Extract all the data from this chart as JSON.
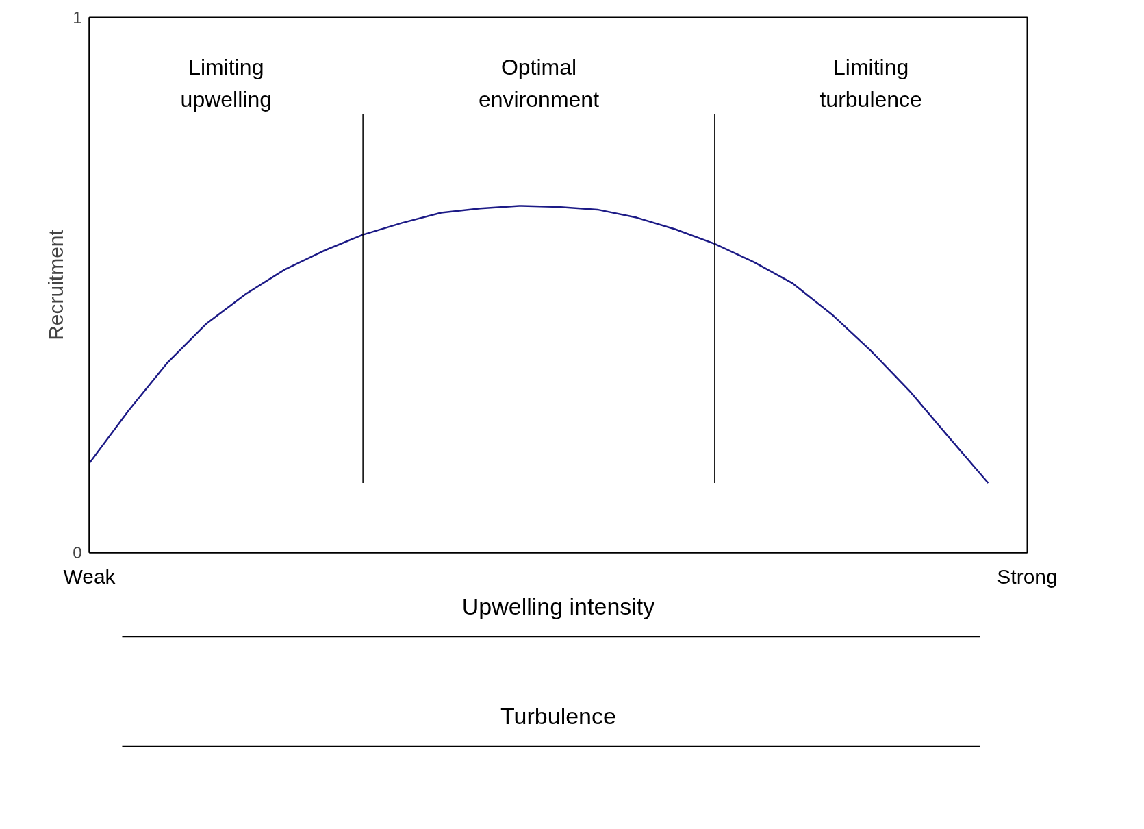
{
  "chart_data": {
    "type": "line",
    "ylabel": "Recruitment",
    "xlabel": "Upwelling intensity",
    "categories": [
      "Weak",
      null,
      null,
      null,
      null,
      null,
      null,
      null,
      null,
      null,
      null,
      null,
      null,
      null,
      null,
      null,
      null,
      null,
      null,
      null,
      null,
      null,
      null,
      null,
      "Strong"
    ],
    "ylim": [
      0,
      1
    ],
    "yticks": [
      0,
      1
    ],
    "marker": "none",
    "line_style": "solid",
    "series": [
      {
        "color": "#1c1a86",
        "values": [
          0.167,
          0.265,
          0.355,
          0.428,
          0.483,
          0.529,
          0.564,
          0.594,
          0.616,
          0.635,
          0.643,
          0.648,
          0.646,
          0.641,
          0.626,
          0.604,
          0.577,
          0.543,
          0.503,
          0.445,
          0.377,
          0.301,
          0.215,
          0.13,
          null
        ]
      }
    ],
    "annotations": [
      "Limiting upwelling",
      "Optimal environment",
      "Limiting turbulence",
      "Turbulence"
    ]
  }
}
